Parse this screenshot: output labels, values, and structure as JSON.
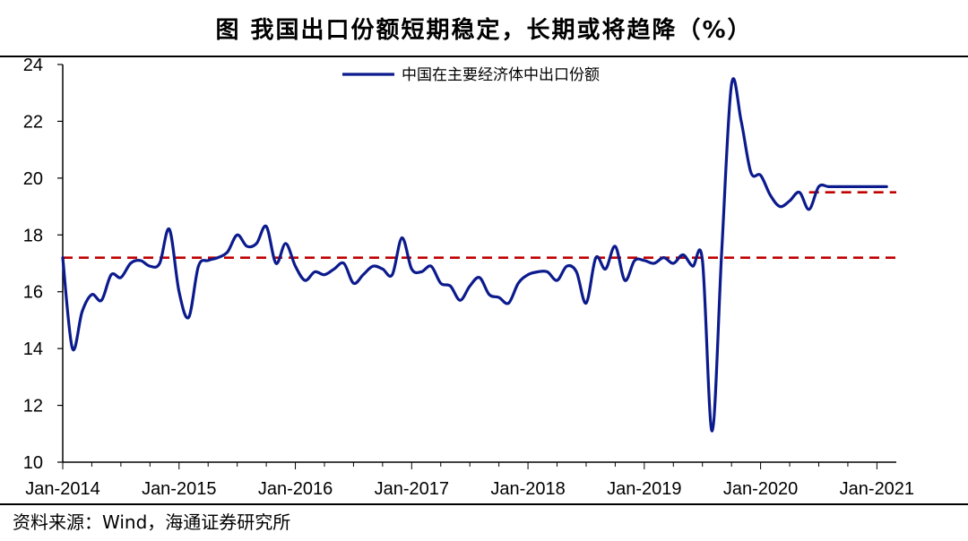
{
  "header": {
    "title": "图  我国出口份额短期稳定，长期或将趋降（%）"
  },
  "footer": {
    "source": "资料来源：Wind，海通证券研究所"
  },
  "colors": {
    "line": "#0b1a8c",
    "reference": "#c00000",
    "axis": "#000000"
  },
  "chart_data": {
    "type": "line",
    "title": "图  我国出口份额短期稳定，长期或将趋降（%）",
    "xlabel": "",
    "ylabel": "",
    "ylim": [
      10,
      24
    ],
    "yticks": [
      10,
      12,
      14,
      16,
      18,
      20,
      22,
      24
    ],
    "xlim": [
      "2014-01",
      "2021-03"
    ],
    "xtick_labels": [
      "Jan-2014",
      "Jan-2015",
      "Jan-2016",
      "Jan-2017",
      "Jan-2018",
      "Jan-2019",
      "Jan-2020",
      "Jan-2021"
    ],
    "grid": false,
    "legend_position": "top-center",
    "series": [
      {
        "name": "中国在主要经济体中出口份额",
        "x": [
          "2014-01",
          "2014-02",
          "2014-03",
          "2014-04",
          "2014-05",
          "2014-06",
          "2014-07",
          "2014-08",
          "2014-09",
          "2014-10",
          "2014-11",
          "2014-12",
          "2015-01",
          "2015-02",
          "2015-03",
          "2015-04",
          "2015-05",
          "2015-06",
          "2015-07",
          "2015-08",
          "2015-09",
          "2015-10",
          "2015-11",
          "2015-12",
          "2016-01",
          "2016-02",
          "2016-03",
          "2016-04",
          "2016-05",
          "2016-06",
          "2016-07",
          "2016-08",
          "2016-09",
          "2016-10",
          "2016-11",
          "2016-12",
          "2017-01",
          "2017-02",
          "2017-03",
          "2017-04",
          "2017-05",
          "2017-06",
          "2017-07",
          "2017-08",
          "2017-09",
          "2017-10",
          "2017-11",
          "2017-12",
          "2018-01",
          "2018-02",
          "2018-03",
          "2018-04",
          "2018-05",
          "2018-06",
          "2018-07",
          "2018-08",
          "2018-09",
          "2018-10",
          "2018-11",
          "2018-12",
          "2019-01",
          "2019-02",
          "2019-03",
          "2019-04",
          "2019-05",
          "2019-06",
          "2019-07",
          "2019-08",
          "2019-09",
          "2019-10",
          "2019-11",
          "2019-12",
          "2020-01",
          "2020-02",
          "2020-03",
          "2020-04",
          "2020-05",
          "2020-06",
          "2020-07",
          "2020-08",
          "2020-09",
          "2020-10",
          "2020-11",
          "2020-12",
          "2021-01",
          "2021-02"
        ],
        "values": [
          17.2,
          14.0,
          15.3,
          15.9,
          15.7,
          16.6,
          16.5,
          17.0,
          17.1,
          16.9,
          17.0,
          18.2,
          16.0,
          15.1,
          16.9,
          17.1,
          17.2,
          17.4,
          18.0,
          17.6,
          17.7,
          18.3,
          17.0,
          17.7,
          16.9,
          16.4,
          16.7,
          16.6,
          16.8,
          17.0,
          16.3,
          16.6,
          16.9,
          16.8,
          16.6,
          17.9,
          16.8,
          16.7,
          16.9,
          16.3,
          16.2,
          15.7,
          16.2,
          16.5,
          15.9,
          15.8,
          15.6,
          16.3,
          16.6,
          16.7,
          16.7,
          16.4,
          16.9,
          16.7,
          15.6,
          17.2,
          16.8,
          17.6,
          16.4,
          17.1,
          17.1,
          17.0,
          17.2,
          17.0,
          17.3,
          16.9,
          17.1,
          11.1,
          17.5,
          23.3,
          22.0,
          20.2,
          20.1,
          19.4,
          19.0,
          19.2,
          19.5,
          18.9,
          19.7,
          19.7,
          19.7,
          19.7,
          19.7,
          19.7,
          19.7,
          19.7
        ]
      }
    ],
    "reference_lines": [
      {
        "value": 17.2,
        "from": "2014-01",
        "to": "2021-03"
      },
      {
        "value": 19.5,
        "from": "2020-06",
        "to": "2021-03"
      }
    ]
  }
}
